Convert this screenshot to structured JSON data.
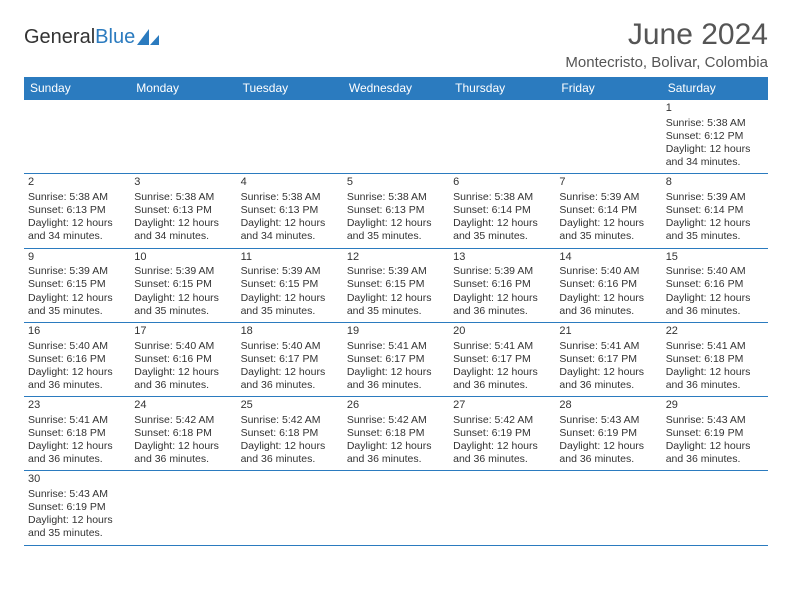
{
  "logo": {
    "text_a": "General",
    "text_b": "Blue"
  },
  "title": "June 2024",
  "location": "Montecristo, Bolivar, Colombia",
  "colors": {
    "header_bg": "#2b7bbf",
    "header_fg": "#ffffff",
    "cell_border": "#2b7bbf",
    "text": "#333333",
    "title_text": "#555555"
  },
  "weekdays": [
    "Sunday",
    "Monday",
    "Tuesday",
    "Wednesday",
    "Thursday",
    "Friday",
    "Saturday"
  ],
  "weeks": [
    [
      null,
      null,
      null,
      null,
      null,
      null,
      {
        "n": "1",
        "sr": "5:38 AM",
        "ss": "6:12 PM",
        "dl": "12 hours and 34 minutes."
      }
    ],
    [
      {
        "n": "2",
        "sr": "5:38 AM",
        "ss": "6:13 PM",
        "dl": "12 hours and 34 minutes."
      },
      {
        "n": "3",
        "sr": "5:38 AM",
        "ss": "6:13 PM",
        "dl": "12 hours and 34 minutes."
      },
      {
        "n": "4",
        "sr": "5:38 AM",
        "ss": "6:13 PM",
        "dl": "12 hours and 34 minutes."
      },
      {
        "n": "5",
        "sr": "5:38 AM",
        "ss": "6:13 PM",
        "dl": "12 hours and 35 minutes."
      },
      {
        "n": "6",
        "sr": "5:38 AM",
        "ss": "6:14 PM",
        "dl": "12 hours and 35 minutes."
      },
      {
        "n": "7",
        "sr": "5:39 AM",
        "ss": "6:14 PM",
        "dl": "12 hours and 35 minutes."
      },
      {
        "n": "8",
        "sr": "5:39 AM",
        "ss": "6:14 PM",
        "dl": "12 hours and 35 minutes."
      }
    ],
    [
      {
        "n": "9",
        "sr": "5:39 AM",
        "ss": "6:15 PM",
        "dl": "12 hours and 35 minutes."
      },
      {
        "n": "10",
        "sr": "5:39 AM",
        "ss": "6:15 PM",
        "dl": "12 hours and 35 minutes."
      },
      {
        "n": "11",
        "sr": "5:39 AM",
        "ss": "6:15 PM",
        "dl": "12 hours and 35 minutes."
      },
      {
        "n": "12",
        "sr": "5:39 AM",
        "ss": "6:15 PM",
        "dl": "12 hours and 35 minutes."
      },
      {
        "n": "13",
        "sr": "5:39 AM",
        "ss": "6:16 PM",
        "dl": "12 hours and 36 minutes."
      },
      {
        "n": "14",
        "sr": "5:40 AM",
        "ss": "6:16 PM",
        "dl": "12 hours and 36 minutes."
      },
      {
        "n": "15",
        "sr": "5:40 AM",
        "ss": "6:16 PM",
        "dl": "12 hours and 36 minutes."
      }
    ],
    [
      {
        "n": "16",
        "sr": "5:40 AM",
        "ss": "6:16 PM",
        "dl": "12 hours and 36 minutes."
      },
      {
        "n": "17",
        "sr": "5:40 AM",
        "ss": "6:16 PM",
        "dl": "12 hours and 36 minutes."
      },
      {
        "n": "18",
        "sr": "5:40 AM",
        "ss": "6:17 PM",
        "dl": "12 hours and 36 minutes."
      },
      {
        "n": "19",
        "sr": "5:41 AM",
        "ss": "6:17 PM",
        "dl": "12 hours and 36 minutes."
      },
      {
        "n": "20",
        "sr": "5:41 AM",
        "ss": "6:17 PM",
        "dl": "12 hours and 36 minutes."
      },
      {
        "n": "21",
        "sr": "5:41 AM",
        "ss": "6:17 PM",
        "dl": "12 hours and 36 minutes."
      },
      {
        "n": "22",
        "sr": "5:41 AM",
        "ss": "6:18 PM",
        "dl": "12 hours and 36 minutes."
      }
    ],
    [
      {
        "n": "23",
        "sr": "5:41 AM",
        "ss": "6:18 PM",
        "dl": "12 hours and 36 minutes."
      },
      {
        "n": "24",
        "sr": "5:42 AM",
        "ss": "6:18 PM",
        "dl": "12 hours and 36 minutes."
      },
      {
        "n": "25",
        "sr": "5:42 AM",
        "ss": "6:18 PM",
        "dl": "12 hours and 36 minutes."
      },
      {
        "n": "26",
        "sr": "5:42 AM",
        "ss": "6:18 PM",
        "dl": "12 hours and 36 minutes."
      },
      {
        "n": "27",
        "sr": "5:42 AM",
        "ss": "6:19 PM",
        "dl": "12 hours and 36 minutes."
      },
      {
        "n": "28",
        "sr": "5:43 AM",
        "ss": "6:19 PM",
        "dl": "12 hours and 36 minutes."
      },
      {
        "n": "29",
        "sr": "5:43 AM",
        "ss": "6:19 PM",
        "dl": "12 hours and 36 minutes."
      }
    ],
    [
      {
        "n": "30",
        "sr": "5:43 AM",
        "ss": "6:19 PM",
        "dl": "12 hours and 35 minutes."
      },
      null,
      null,
      null,
      null,
      null,
      null
    ]
  ],
  "labels": {
    "sunrise": "Sunrise: ",
    "sunset": "Sunset: ",
    "daylight": "Daylight: "
  }
}
